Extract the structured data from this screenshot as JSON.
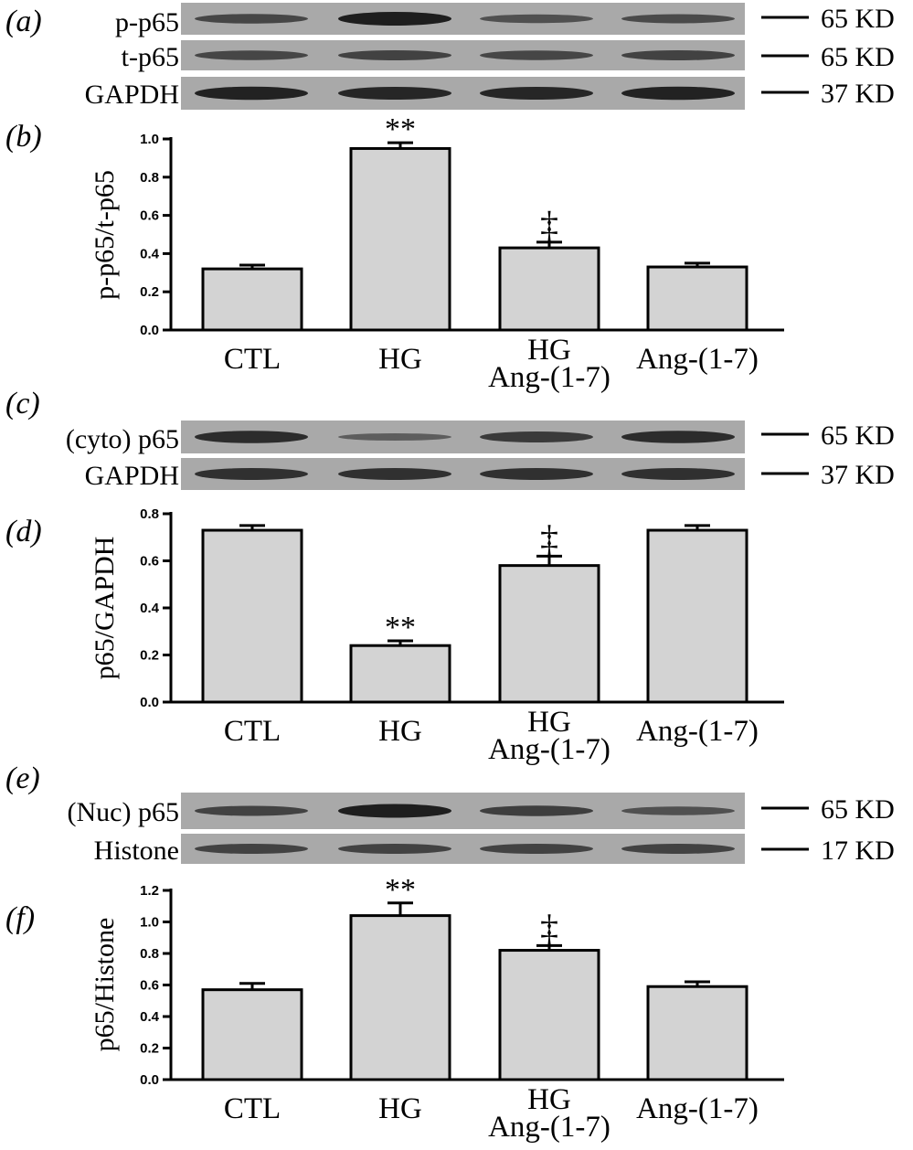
{
  "panels": {
    "a": "(a)",
    "b": "(b)",
    "c": "(c)",
    "d": "(d)",
    "e": "(e)",
    "f": "(f)"
  },
  "colors": {
    "band": "#1e1e1e",
    "blot_bg": "#a9a9a9",
    "bar_fill": "#d3d3d3",
    "ink": "#000000"
  },
  "blots": [
    {
      "id": "p-p65",
      "label": "p-p65",
      "kd": "65 KD",
      "intensity": [
        0.55,
        1.0,
        0.45,
        0.5
      ]
    },
    {
      "id": "t-p65",
      "label": "t-p65",
      "kd": "65 KD",
      "intensity": [
        0.55,
        0.6,
        0.55,
        0.6
      ]
    },
    {
      "id": "gapdh-a",
      "label": "GAPDH",
      "kd": "37 KD",
      "intensity": [
        0.95,
        0.9,
        0.9,
        0.95
      ]
    },
    {
      "id": "cyto-p65",
      "label": "(cyto) p65",
      "kd": "65 KD",
      "intensity": [
        0.85,
        0.3,
        0.7,
        0.85
      ]
    },
    {
      "id": "gapdh-c",
      "label": "GAPDH",
      "kd": "37 KD",
      "intensity": [
        0.8,
        0.8,
        0.8,
        0.8
      ]
    },
    {
      "id": "nuc-p65",
      "label": "(Nuc) p65",
      "kd": "65 KD",
      "intensity": [
        0.6,
        1.0,
        0.65,
        0.45
      ]
    },
    {
      "id": "histone",
      "label": "Histone",
      "kd": "17 KD",
      "intensity": [
        0.6,
        0.6,
        0.6,
        0.6
      ]
    }
  ],
  "chart_data": [
    {
      "type": "bar",
      "panel": "b",
      "ylabel": "p-p65/t-p65",
      "categories": [
        "CTL",
        "HG",
        "HG\nAng-(1-7)",
        "Ang-(1-7)"
      ],
      "values": [
        0.32,
        0.95,
        0.43,
        0.33
      ],
      "errors": [
        0.02,
        0.03,
        0.03,
        0.02
      ],
      "annotations": [
        "",
        "**",
        "‡",
        ""
      ],
      "ylim": [
        0,
        1.0
      ],
      "yticks": [
        "0.0",
        "0.2",
        "0.4",
        "0.6",
        "0.8",
        "1.0"
      ]
    },
    {
      "type": "bar",
      "panel": "d",
      "ylabel": "p65/GAPDH",
      "categories": [
        "CTL",
        "HG",
        "HG\nAng-(1-7)",
        "Ang-(1-7)"
      ],
      "values": [
        0.73,
        0.24,
        0.58,
        0.73
      ],
      "errors": [
        0.02,
        0.02,
        0.04,
        0.02
      ],
      "annotations": [
        "",
        "**",
        "‡",
        ""
      ],
      "ylim": [
        0,
        0.8
      ],
      "yticks": [
        "0.0",
        "0.2",
        "0.4",
        "0.6",
        "0.8"
      ]
    },
    {
      "type": "bar",
      "panel": "f",
      "ylabel": "p65/Histone",
      "categories": [
        "CTL",
        "HG",
        "HG\nAng-(1-7)",
        "Ang-(1-7)"
      ],
      "values": [
        0.57,
        1.04,
        0.82,
        0.59
      ],
      "errors": [
        0.04,
        0.08,
        0.03,
        0.03
      ],
      "annotations": [
        "",
        "**",
        "‡",
        ""
      ],
      "ylim": [
        0,
        1.2
      ],
      "yticks": [
        "0.0",
        "0.2",
        "0.4",
        "0.6",
        "0.8",
        "1.0",
        "1.2"
      ]
    }
  ]
}
